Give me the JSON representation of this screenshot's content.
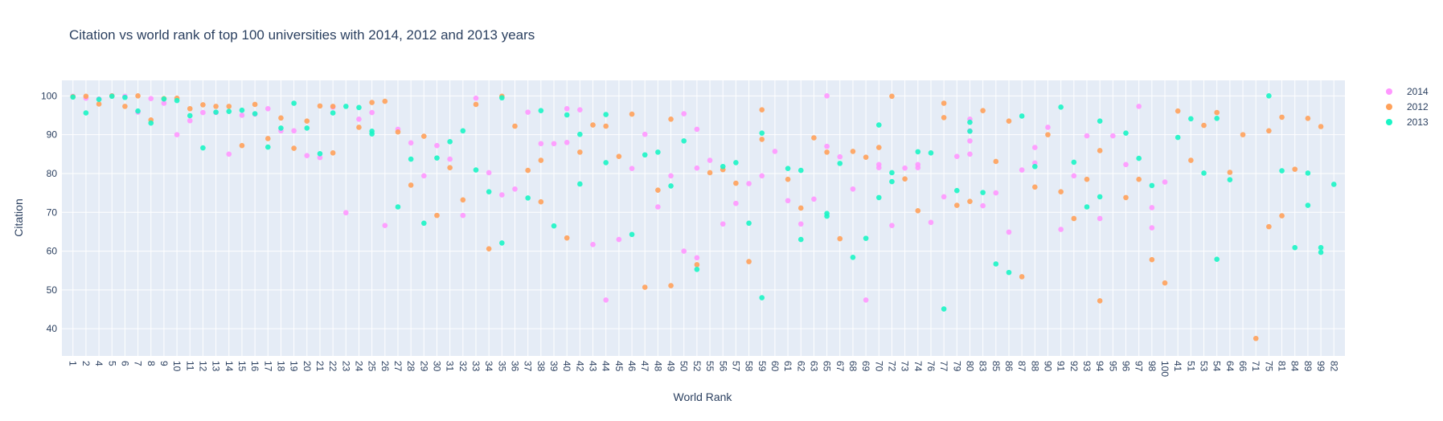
{
  "chart_data": {
    "type": "scatter",
    "title": "Citation vs world rank of top 100 universities with 2014, 2012 and 2013 years",
    "xlabel": "World Rank",
    "ylabel": "Citation",
    "ylim": [
      33,
      104
    ],
    "yticks": [
      40,
      50,
      60,
      70,
      80,
      90,
      100
    ],
    "categories": [
      "1",
      "2",
      "4",
      "5",
      "6",
      "7",
      "8",
      "9",
      "10",
      "11",
      "12",
      "13",
      "14",
      "15",
      "16",
      "17",
      "18",
      "19",
      "20",
      "21",
      "22",
      "23",
      "24",
      "25",
      "26",
      "27",
      "28",
      "29",
      "30",
      "31",
      "32",
      "33",
      "34",
      "35",
      "36",
      "37",
      "38",
      "39",
      "40",
      "42",
      "43",
      "44",
      "45",
      "46",
      "47",
      "48",
      "49",
      "50",
      "52",
      "55",
      "56",
      "57",
      "58",
      "59",
      "60",
      "61",
      "62",
      "63",
      "65",
      "67",
      "68",
      "69",
      "70",
      "72",
      "73",
      "74",
      "76",
      "77",
      "79",
      "80",
      "83",
      "85",
      "86",
      "87",
      "88",
      "90",
      "91",
      "92",
      "93",
      "94",
      "95",
      "96",
      "97",
      "98",
      "100",
      "41",
      "51",
      "53",
      "54",
      "64",
      "66",
      "71",
      "75",
      "81",
      "84",
      "89",
      "99",
      "82"
    ],
    "legend_position": "top-right",
    "grid": true,
    "colors": {
      "2014": "#FF97FF",
      "2012": "#FFA15A",
      "2013": "#19F5C5"
    },
    "series": [
      {
        "name": "2014",
        "color": "#FF97FF",
        "points": [
          [
            "1",
            99.9
          ],
          [
            "2",
            99.4
          ],
          [
            "4",
            99.2
          ],
          [
            "5",
            100
          ],
          [
            "6",
            99.9
          ],
          [
            "7",
            95.8
          ],
          [
            "8",
            99.3
          ],
          [
            "9",
            98.1
          ],
          [
            "10",
            90
          ],
          [
            "11",
            93.6
          ],
          [
            "12",
            95.7
          ],
          [
            "13",
            95.7
          ],
          [
            "14",
            85
          ],
          [
            "15",
            95
          ],
          [
            "16",
            95.3
          ],
          [
            "17",
            96.7
          ],
          [
            "18",
            91
          ],
          [
            "19",
            91
          ],
          [
            "20",
            84.6
          ],
          [
            "21",
            84.1
          ],
          [
            "22",
            97.1
          ],
          [
            "23",
            69.9
          ],
          [
            "24",
            94
          ],
          [
            "25",
            95.7
          ],
          [
            "26",
            66.6
          ],
          [
            "27",
            91.4
          ],
          [
            "28",
            87.9
          ],
          [
            "29",
            79.4
          ],
          [
            "30",
            87.2
          ],
          [
            "31",
            83.7
          ],
          [
            "32",
            69.2
          ],
          [
            "33",
            99.4
          ],
          [
            "34",
            80.2
          ],
          [
            "35",
            74.5
          ],
          [
            "36",
            76
          ],
          [
            "37",
            95.8
          ],
          [
            "38",
            87.7
          ],
          [
            "39",
            87.7
          ],
          [
            "40",
            88
          ],
          [
            "40",
            96.7
          ],
          [
            "42",
            96.4
          ],
          [
            "43",
            61.7
          ],
          [
            "44",
            47.4
          ],
          [
            "45",
            63
          ],
          [
            "46",
            81.3
          ],
          [
            "47",
            90.1
          ],
          [
            "48",
            71.4
          ],
          [
            "49",
            79.4
          ],
          [
            "50",
            95.4
          ],
          [
            "50",
            60
          ],
          [
            "52",
            91.4
          ],
          [
            "52",
            81.4
          ],
          [
            "52",
            58.3
          ],
          [
            "55",
            83.4
          ],
          [
            "56",
            67
          ],
          [
            "57",
            72.3
          ],
          [
            "58",
            77.4
          ],
          [
            "59",
            79.4
          ],
          [
            "60",
            85.7
          ],
          [
            "61",
            73
          ],
          [
            "62",
            67
          ],
          [
            "63",
            73.4
          ],
          [
            "65",
            100
          ],
          [
            "65",
            87
          ],
          [
            "67",
            84.3
          ],
          [
            "68",
            76
          ],
          [
            "69",
            47.4
          ],
          [
            "70",
            82.3
          ],
          [
            "70",
            81.5
          ],
          [
            "72",
            66.6
          ],
          [
            "73",
            81.4
          ],
          [
            "74",
            81.5
          ],
          [
            "74",
            82.3
          ],
          [
            "76",
            67.4
          ],
          [
            "77",
            74
          ],
          [
            "79",
            84.4
          ],
          [
            "80",
            85
          ],
          [
            "80",
            94
          ],
          [
            "80",
            91
          ],
          [
            "80",
            88.4
          ],
          [
            "83",
            71.7
          ],
          [
            "85",
            75
          ],
          [
            "86",
            64.9
          ],
          [
            "87",
            80.9
          ],
          [
            "88",
            82.7
          ],
          [
            "88",
            86.7
          ],
          [
            "90",
            91.9
          ],
          [
            "91",
            65.6
          ],
          [
            "92",
            79.4
          ],
          [
            "93",
            89.7
          ],
          [
            "94",
            68.4
          ],
          [
            "95",
            89.7
          ],
          [
            "96",
            82.3
          ],
          [
            "97",
            97.3
          ],
          [
            "98",
            71.2
          ],
          [
            "98",
            66
          ],
          [
            "100",
            77.8
          ]
        ]
      },
      {
        "name": "2012",
        "color": "#FFA15A",
        "points": [
          [
            "1",
            99.8
          ],
          [
            "2",
            99.9
          ],
          [
            "4",
            97.9
          ],
          [
            "5",
            100
          ],
          [
            "6",
            97.3
          ],
          [
            "7",
            100
          ],
          [
            "8",
            93.8
          ],
          [
            "9",
            99.3
          ],
          [
            "10",
            99.4
          ],
          [
            "11",
            96.7
          ],
          [
            "12",
            97.7
          ],
          [
            "13",
            97.3
          ],
          [
            "14",
            97.3
          ],
          [
            "15",
            87.2
          ],
          [
            "16",
            97.8
          ],
          [
            "17",
            89
          ],
          [
            "18",
            94.3
          ],
          [
            "19",
            86.5
          ],
          [
            "20",
            93.5
          ],
          [
            "21",
            97.4
          ],
          [
            "22",
            97.3
          ],
          [
            "22",
            85.3
          ],
          [
            "24",
            91.9
          ],
          [
            "25",
            98.3
          ],
          [
            "26",
            98.6
          ],
          [
            "27",
            90.7
          ],
          [
            "28",
            77
          ],
          [
            "29",
            89.6
          ],
          [
            "30",
            69.2
          ],
          [
            "31",
            81.5
          ],
          [
            "32",
            73.2
          ],
          [
            "33",
            97.8
          ],
          [
            "34",
            60.6
          ],
          [
            "35",
            99.9
          ],
          [
            "36",
            92.2
          ],
          [
            "37",
            80.8
          ],
          [
            "38",
            83.4
          ],
          [
            "38",
            72.7
          ],
          [
            "40",
            63.4
          ],
          [
            "42",
            85.5
          ],
          [
            "43",
            92.5
          ],
          [
            "44",
            92.2
          ],
          [
            "45",
            84.4
          ],
          [
            "46",
            95.3
          ],
          [
            "47",
            50.7
          ],
          [
            "48",
            75.7
          ],
          [
            "49",
            94
          ],
          [
            "49",
            51.1
          ],
          [
            "52",
            56.5
          ],
          [
            "55",
            80.2
          ],
          [
            "56",
            81
          ],
          [
            "57",
            77.5
          ],
          [
            "58",
            57.3
          ],
          [
            "59",
            96.4
          ],
          [
            "59",
            88.8
          ],
          [
            "61",
            78.5
          ],
          [
            "62",
            71.1
          ],
          [
            "63",
            89.2
          ],
          [
            "65",
            85.5
          ],
          [
            "67",
            63.2
          ],
          [
            "68",
            85.7
          ],
          [
            "69",
            84.2
          ],
          [
            "70",
            86.7
          ],
          [
            "72",
            99.9
          ],
          [
            "73",
            78.6
          ],
          [
            "74",
            70.4
          ],
          [
            "77",
            94.4
          ],
          [
            "77",
            98.1
          ],
          [
            "79",
            71.8
          ],
          [
            "80",
            72.8
          ],
          [
            "83",
            96.2
          ],
          [
            "85",
            83.1
          ],
          [
            "86",
            93.5
          ],
          [
            "87",
            53.4
          ],
          [
            "88",
            76.5
          ],
          [
            "90",
            90
          ],
          [
            "91",
            75.3
          ],
          [
            "92",
            68.4
          ],
          [
            "93",
            78.5
          ],
          [
            "94",
            85.9
          ],
          [
            "94",
            47.2
          ],
          [
            "96",
            73.8
          ],
          [
            "97",
            78.5
          ],
          [
            "98",
            57.8
          ],
          [
            "100",
            51.8
          ],
          [
            "41",
            96.1
          ],
          [
            "51",
            83.4
          ],
          [
            "53",
            92.4
          ],
          [
            "54",
            95.7
          ],
          [
            "64",
            80.3
          ],
          [
            "66",
            90
          ],
          [
            "71",
            37.5
          ],
          [
            "75",
            66.3
          ],
          [
            "75",
            91
          ],
          [
            "81",
            69.1
          ],
          [
            "81",
            94.5
          ],
          [
            "84",
            81.1
          ],
          [
            "89",
            94.2
          ],
          [
            "99",
            92.1
          ]
        ]
      },
      {
        "name": "2013",
        "color": "#19F5C5",
        "points": [
          [
            "1",
            99.7
          ],
          [
            "2",
            95.6
          ],
          [
            "4",
            99.1
          ],
          [
            "5",
            99.9
          ],
          [
            "6",
            99.6
          ],
          [
            "7",
            96.1
          ],
          [
            "8",
            93
          ],
          [
            "9",
            99.2
          ],
          [
            "10",
            98.8
          ],
          [
            "11",
            94.9
          ],
          [
            "12",
            86.6
          ],
          [
            "13",
            95.8
          ],
          [
            "14",
            96
          ],
          [
            "15",
            96.3
          ],
          [
            "16",
            95.4
          ],
          [
            "17",
            86.8
          ],
          [
            "18",
            91.7
          ],
          [
            "19",
            98.1
          ],
          [
            "20",
            91.7
          ],
          [
            "21",
            85.1
          ],
          [
            "22",
            95.6
          ],
          [
            "23",
            97.3
          ],
          [
            "24",
            97
          ],
          [
            "25",
            90.9
          ],
          [
            "25",
            90.2
          ],
          [
            "27",
            71.4
          ],
          [
            "28",
            83.7
          ],
          [
            "29",
            67.2
          ],
          [
            "30",
            84
          ],
          [
            "31",
            88.2
          ],
          [
            "32",
            91
          ],
          [
            "33",
            80.9
          ],
          [
            "34",
            75.3
          ],
          [
            "35",
            99.5
          ],
          [
            "35",
            62.1
          ],
          [
            "37",
            73.7
          ],
          [
            "38",
            96.2
          ],
          [
            "39",
            66.5
          ],
          [
            "40",
            95.1
          ],
          [
            "42",
            90.1
          ],
          [
            "42",
            77.3
          ],
          [
            "44",
            95.2
          ],
          [
            "44",
            82.8
          ],
          [
            "46",
            64.3
          ],
          [
            "47",
            84.8
          ],
          [
            "48",
            85.5
          ],
          [
            "49",
            76.8
          ],
          [
            "50",
            88.4
          ],
          [
            "52",
            55.3
          ],
          [
            "56",
            81.8
          ],
          [
            "57",
            82.8
          ],
          [
            "58",
            67.2
          ],
          [
            "59",
            90.4
          ],
          [
            "59",
            48
          ],
          [
            "61",
            81.3
          ],
          [
            "62",
            80.8
          ],
          [
            "62",
            63
          ],
          [
            "65",
            69.7
          ],
          [
            "65",
            69
          ],
          [
            "67",
            82.6
          ],
          [
            "68",
            58.4
          ],
          [
            "69",
            63.3
          ],
          [
            "70",
            92.5
          ],
          [
            "70",
            73.8
          ],
          [
            "72",
            80.2
          ],
          [
            "72",
            77.9
          ],
          [
            "74",
            85.6
          ],
          [
            "76",
            85.3
          ],
          [
            "77",
            45.1
          ],
          [
            "79",
            75.6
          ],
          [
            "80",
            90.9
          ],
          [
            "80",
            93.2
          ],
          [
            "83",
            75.1
          ],
          [
            "85",
            56.7
          ],
          [
            "86",
            54.5
          ],
          [
            "87",
            94.8
          ],
          [
            "88",
            81.8
          ],
          [
            "91",
            97.1
          ],
          [
            "92",
            82.9
          ],
          [
            "93",
            71.4
          ],
          [
            "94",
            93.5
          ],
          [
            "94",
            74
          ],
          [
            "96",
            90.4
          ],
          [
            "97",
            83.9
          ],
          [
            "98",
            76.9
          ],
          [
            "41",
            89.3
          ],
          [
            "51",
            94.1
          ],
          [
            "53",
            80.1
          ],
          [
            "54",
            57.9
          ],
          [
            "54",
            94.2
          ],
          [
            "64",
            78.4
          ],
          [
            "75",
            100
          ],
          [
            "81",
            80.7
          ],
          [
            "84",
            60.9
          ],
          [
            "89",
            80.1
          ],
          [
            "89",
            71.8
          ],
          [
            "99",
            60.9
          ],
          [
            "99",
            59.7
          ],
          [
            "82",
            77.2
          ]
        ]
      }
    ]
  }
}
